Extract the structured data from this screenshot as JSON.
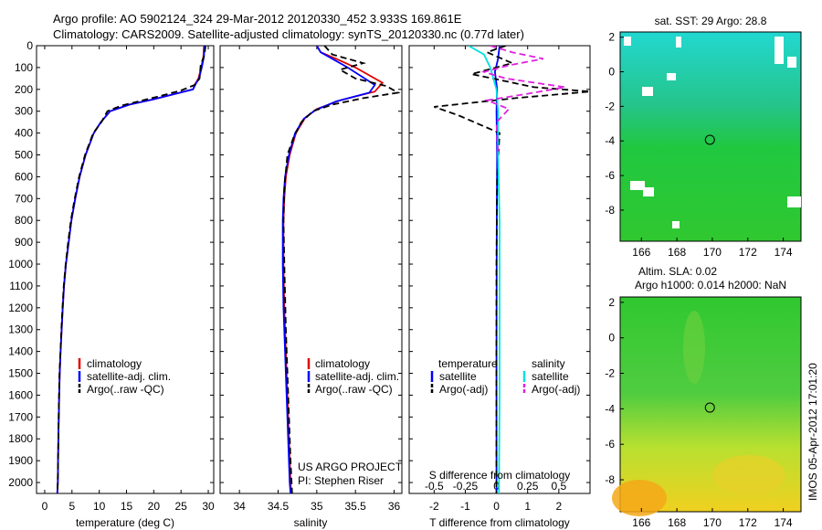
{
  "header": {
    "line1": "Argo profile: AO 5902124_324 29-Mar-2012 20120330_452 3.933S 169.861E",
    "line2": "Climatology: CARS2009. Satellite-adjusted climatology: synTS_20120330.nc (0.77d later)"
  },
  "side_stamp": "IMOS 05-Apr-2012 17:01:20",
  "colors": {
    "clim": "#e00000",
    "sat": "#0000ff",
    "argo": "#000000",
    "sal_sat": "#00e0e0",
    "sal_argo": "#e020e0"
  },
  "chart_data": [
    {
      "type": "line",
      "id": "temperature",
      "xlabel": "temperature (deg C)",
      "xlim": [
        -1.5,
        31
      ],
      "xticks": [
        0,
        5,
        10,
        15,
        20,
        25,
        30
      ],
      "ylim": [
        0,
        2050
      ],
      "yticks": [
        0,
        100,
        200,
        300,
        400,
        500,
        600,
        700,
        800,
        900,
        1000,
        1100,
        1200,
        1300,
        1400,
        1500,
        1600,
        1700,
        1800,
        1900,
        2000
      ],
      "legend": [
        "climatology",
        "satellite-adj. clim.",
        "Argo(..raw -QC)"
      ],
      "series": [
        {
          "name": "climatology",
          "color": "#e00000",
          "x": [
            29.2,
            29.1,
            28.7,
            28.2,
            27.6,
            27.2,
            24,
            20,
            15.5,
            12,
            10.3,
            9,
            7.5,
            6.4,
            5.6,
            4.9,
            4.4,
            3.9,
            3.55,
            3.3,
            3.1,
            2.9,
            2.75,
            2.65,
            2.5,
            2.4,
            2.3
          ],
          "y": [
            0,
            50,
            100,
            150,
            175,
            200,
            220,
            245,
            270,
            300,
            350,
            400,
            500,
            600,
            700,
            800,
            900,
            1000,
            1100,
            1200,
            1300,
            1400,
            1500,
            1600,
            1800,
            2000,
            2050
          ]
        },
        {
          "name": "satellite-adj. clim.",
          "color": "#0000ff",
          "x": [
            29.3,
            29.2,
            28.8,
            28.3,
            27.7,
            27.2,
            24,
            20,
            15.5,
            12,
            10.3,
            9,
            7.5,
            6.4,
            5.6,
            4.9,
            4.4,
            3.9,
            3.55,
            3.3,
            3.1,
            2.9,
            2.75,
            2.65,
            2.5,
            2.4,
            2.3
          ],
          "y": [
            0,
            50,
            100,
            150,
            175,
            200,
            220,
            245,
            270,
            300,
            350,
            400,
            500,
            600,
            700,
            800,
            900,
            1000,
            1100,
            1200,
            1300,
            1400,
            1500,
            1600,
            1800,
            2000,
            2050
          ]
        },
        {
          "name": "Argo(..raw -QC)",
          "color": "#000000",
          "dashed": true,
          "x": [
            29.5,
            29.3,
            28.6,
            28.4,
            27.5,
            25,
            22,
            18,
            14,
            11.5,
            10.4,
            8.9,
            7.4,
            6.3,
            5.5,
            4.8,
            4.3,
            3.85,
            3.5,
            3.25,
            3.05,
            2.9,
            2.7,
            2.55,
            2.45,
            2.35
          ],
          "y": [
            0,
            40,
            90,
            150,
            180,
            205,
            225,
            250,
            275,
            300,
            350,
            400,
            500,
            600,
            700,
            800,
            900,
            1000,
            1100,
            1200,
            1300,
            1400,
            1500,
            1700,
            1900,
            2050
          ]
        }
      ]
    },
    {
      "type": "line",
      "id": "salinity",
      "xlabel": "salinity",
      "xlim": [
        33.75,
        36.1
      ],
      "xticks": [
        34,
        34.5,
        35,
        35.5,
        36
      ],
      "ylim": [
        0,
        2050
      ],
      "legend": [
        "climatology",
        "satellite-adj. clim.",
        "Argo(..raw -QC)"
      ],
      "annotation": [
        "US ARGO PROJECT",
        "PI: Stephen Riser"
      ],
      "series": [
        {
          "name": "climatology",
          "color": "#e00000",
          "x": [
            35.0,
            35.05,
            35.25,
            35.5,
            35.85,
            35.75,
            35.3,
            35.0,
            34.85,
            34.73,
            34.65,
            34.6,
            34.58,
            34.57,
            34.57,
            34.58,
            34.6,
            34.62,
            34.64,
            34.66,
            34.67
          ],
          "y": [
            0,
            30,
            60,
            100,
            170,
            210,
            250,
            290,
            330,
            400,
            500,
            600,
            700,
            800,
            1000,
            1200,
            1400,
            1600,
            1800,
            2000,
            2050
          ]
        },
        {
          "name": "satellite-adj. clim.",
          "color": "#0000ff",
          "x": [
            35.0,
            35.05,
            35.2,
            35.4,
            35.75,
            35.68,
            35.25,
            34.98,
            34.83,
            34.72,
            34.64,
            34.59,
            34.57,
            34.56,
            34.56,
            34.57,
            34.59,
            34.61,
            34.63,
            34.65,
            34.66
          ],
          "y": [
            0,
            30,
            60,
            100,
            180,
            215,
            255,
            295,
            335,
            400,
            500,
            600,
            700,
            800,
            1000,
            1200,
            1400,
            1600,
            1800,
            2000,
            2050
          ]
        },
        {
          "name": "Argo(..raw -QC)",
          "color": "#000000",
          "dashed": true,
          "x": [
            35.1,
            35.2,
            35.6,
            35.3,
            35.5,
            35.9,
            36.05,
            35.6,
            35.2,
            34.95,
            34.8,
            34.7,
            34.62,
            34.58,
            34.57,
            34.58,
            34.6,
            34.62,
            34.64,
            34.66,
            34.68
          ],
          "y": [
            0,
            40,
            80,
            110,
            150,
            185,
            215,
            240,
            270,
            300,
            350,
            420,
            500,
            650,
            800,
            1000,
            1300,
            1500,
            1700,
            1900,
            2050
          ]
        }
      ]
    },
    {
      "type": "line",
      "id": "difference",
      "xlabel": "T difference from climatology",
      "xlabel_top": "S difference from climatology",
      "xlim": [
        -2.8,
        3.0
      ],
      "xticks": [
        -2,
        -1,
        0,
        1,
        2
      ],
      "xticks_top_labels": [
        "-0.5",
        "-0.25",
        "0",
        "0.25",
        "0.5"
      ],
      "xticks_top_pos": [
        -2,
        -1,
        0,
        1,
        2
      ],
      "ylim": [
        0,
        2050
      ],
      "legend_temp_title": "temperature",
      "legend_sal_title": "salinity",
      "legend_temp": [
        "satellite",
        "Argo(-adj)"
      ],
      "legend_sal": [
        "satellite",
        "Argo(-adj)"
      ],
      "series": [
        {
          "name": "T satellite",
          "color": "#0000ff",
          "x": [
            0.1,
            0.05,
            -0.05,
            0.02,
            0,
            0.02,
            0.01,
            0,
            0
          ],
          "y": [
            0,
            60,
            120,
            200,
            300,
            500,
            800,
            1400,
            2050
          ]
        },
        {
          "name": "T Argo(-adj)",
          "color": "#000000",
          "dashed": true,
          "x": [
            0.3,
            -0.3,
            0.5,
            -0.8,
            0.2,
            1.2,
            3.0,
            0.6,
            -2.0,
            -1.2,
            0.1,
            0.02,
            0.0,
            0.0
          ],
          "y": [
            0,
            30,
            80,
            130,
            160,
            190,
            210,
            240,
            280,
            320,
            400,
            600,
            1000,
            2050
          ]
        },
        {
          "name": "S satellite",
          "color": "#00e0e0",
          "x": [
            -0.9,
            -0.4,
            -0.2,
            0,
            0.05,
            0.05,
            0.1,
            0.1,
            0.1,
            0.08
          ],
          "y": [
            0,
            40,
            100,
            200,
            300,
            500,
            800,
            1200,
            1600,
            2050
          ]
        },
        {
          "name": "S Argo(-adj)",
          "color": "#e020e0",
          "dashed": true,
          "x": [
            -0.2,
            0.5,
            1.5,
            0.4,
            -0.4,
            0.3,
            2.2,
            1.0,
            -0.3,
            0.4,
            0.0,
            0.05
          ],
          "y": [
            0,
            30,
            60,
            90,
            120,
            150,
            190,
            220,
            250,
            290,
            350,
            500
          ]
        }
      ]
    },
    {
      "type": "heatmap",
      "id": "sst-map",
      "title": "sat. SST: 29 Argo: 28.8",
      "xticks": [
        166,
        168,
        170,
        172,
        174
      ],
      "yticks": [
        2,
        0,
        -2,
        -4,
        -6,
        -8
      ],
      "xlim": [
        164.8,
        175
      ],
      "ylim": [
        -9.8,
        2.3
      ],
      "marker": {
        "lon": 169.861,
        "lat": -3.933
      }
    },
    {
      "type": "heatmap",
      "id": "sla-map",
      "title": "Altim. SLA: 0.02",
      "subtitle": "Argo h1000: 0.014  h2000: NaN",
      "xticks": [
        166,
        168,
        170,
        172,
        174
      ],
      "yticks": [
        2,
        0,
        -2,
        -4,
        -6,
        -8
      ],
      "xlim": [
        164.8,
        175
      ],
      "ylim": [
        -9.8,
        2.3
      ],
      "marker": {
        "lon": 169.861,
        "lat": -3.933
      }
    }
  ]
}
